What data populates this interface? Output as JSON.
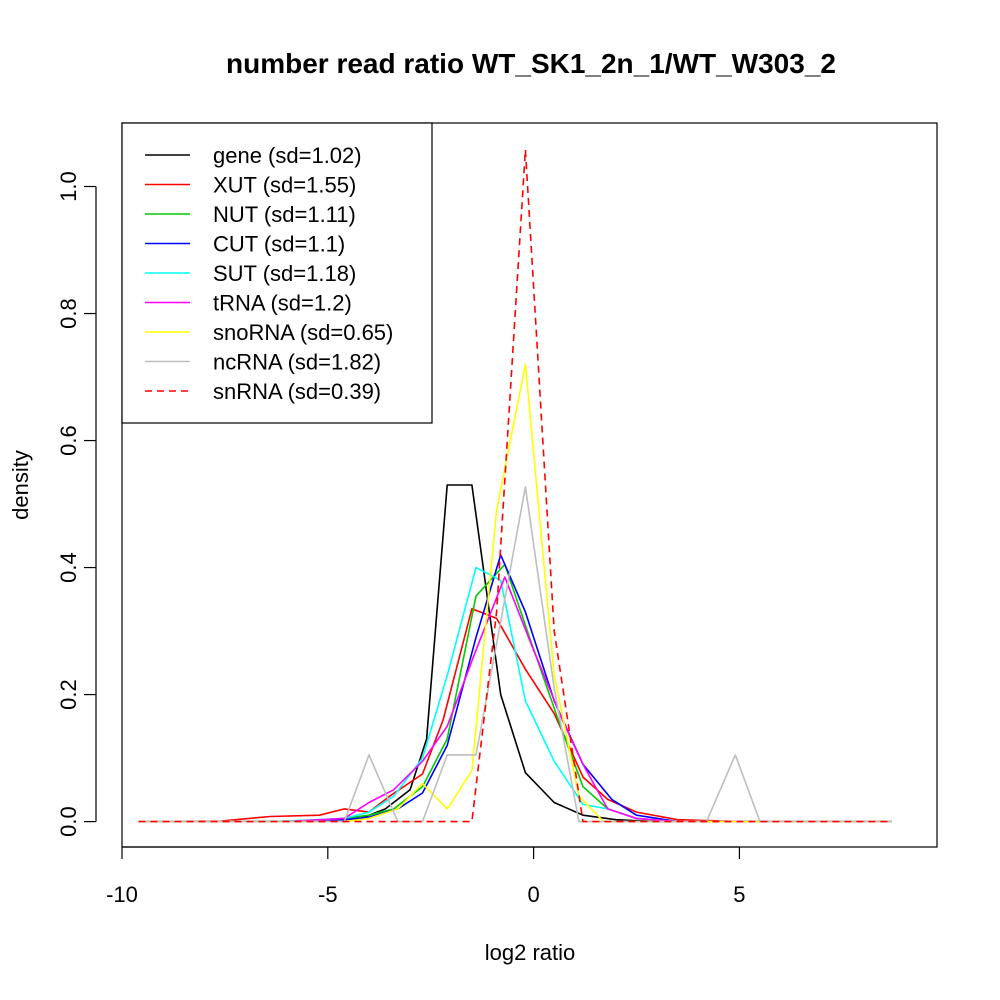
{
  "chart_data": {
    "type": "line",
    "title": "number read ratio WT_SK1_2n_1/WT_W303_2",
    "xlabel": "log2 ratio",
    "ylabel": "density",
    "xlim": [
      -10,
      9.8
    ],
    "ylim": [
      -0.04,
      1.1
    ],
    "x_ticks": [
      -10,
      -5,
      0,
      5
    ],
    "y_ticks": [
      0.0,
      0.2,
      0.4,
      0.6,
      0.8,
      1.0
    ],
    "x_tick_labels": [
      "-10",
      "-5",
      "0",
      "5"
    ],
    "y_tick_labels": [
      "0.0",
      "0.2",
      "0.4",
      "0.6",
      "0.8",
      "1.0"
    ],
    "grid": false,
    "legend_position": "top-left",
    "series": [
      {
        "name": "gene (sd=1.02)",
        "color": "#000000",
        "dash": "solid",
        "points": [
          [
            -9.6,
            0
          ],
          [
            -6.5,
            0
          ],
          [
            -5,
            0.002
          ],
          [
            -4.2,
            0.005
          ],
          [
            -3.6,
            0.02
          ],
          [
            -3.0,
            0.05
          ],
          [
            -2.6,
            0.13
          ],
          [
            -2.1,
            0.53
          ],
          [
            -1.5,
            0.53
          ],
          [
            -0.8,
            0.2
          ],
          [
            -0.2,
            0.077
          ],
          [
            0.5,
            0.03
          ],
          [
            1.2,
            0.01
          ],
          [
            2.0,
            0.003
          ],
          [
            3.0,
            0
          ],
          [
            8.7,
            0
          ]
        ]
      },
      {
        "name": "XUT (sd=1.55)",
        "color": "#ff0000",
        "dash": "solid",
        "points": [
          [
            -9.6,
            0
          ],
          [
            -7.6,
            0.001
          ],
          [
            -6.4,
            0.008
          ],
          [
            -5.2,
            0.01
          ],
          [
            -4.6,
            0.02
          ],
          [
            -4.0,
            0.015
          ],
          [
            -3.5,
            0.04
          ],
          [
            -2.7,
            0.075
          ],
          [
            -2.2,
            0.16
          ],
          [
            -1.5,
            0.335
          ],
          [
            -0.9,
            0.32
          ],
          [
            -0.2,
            0.24
          ],
          [
            0.5,
            0.17
          ],
          [
            1.2,
            0.07
          ],
          [
            1.8,
            0.035
          ],
          [
            2.5,
            0.015
          ],
          [
            3.5,
            0.003
          ],
          [
            5,
            0
          ],
          [
            8.7,
            0
          ]
        ]
      },
      {
        "name": "NUT (sd=1.11)",
        "color": "#00cc00",
        "dash": "solid",
        "points": [
          [
            -9.6,
            0
          ],
          [
            -6,
            0
          ],
          [
            -4.6,
            0.005
          ],
          [
            -4.0,
            0.01
          ],
          [
            -3.4,
            0.02
          ],
          [
            -2.7,
            0.055
          ],
          [
            -2.1,
            0.13
          ],
          [
            -1.4,
            0.355
          ],
          [
            -0.7,
            0.405
          ],
          [
            -0.1,
            0.29
          ],
          [
            0.6,
            0.16
          ],
          [
            1.2,
            0.055
          ],
          [
            1.8,
            0.02
          ],
          [
            2.5,
            0.005
          ],
          [
            3.5,
            0
          ],
          [
            8.7,
            0
          ]
        ]
      },
      {
        "name": "CUT (sd=1.1)",
        "color": "#0000ff",
        "dash": "solid",
        "points": [
          [
            -9.6,
            0
          ],
          [
            -6,
            0
          ],
          [
            -4.6,
            0.003
          ],
          [
            -4.0,
            0.007
          ],
          [
            -3.3,
            0.02
          ],
          [
            -2.7,
            0.045
          ],
          [
            -2.1,
            0.12
          ],
          [
            -1.4,
            0.29
          ],
          [
            -0.8,
            0.42
          ],
          [
            -0.2,
            0.33
          ],
          [
            0.5,
            0.19
          ],
          [
            1.2,
            0.09
          ],
          [
            1.9,
            0.035
          ],
          [
            2.5,
            0.01
          ],
          [
            3.5,
            0
          ],
          [
            8.7,
            0
          ]
        ]
      },
      {
        "name": "SUT (sd=1.18)",
        "color": "#00ffff",
        "dash": "solid",
        "points": [
          [
            -9.6,
            0
          ],
          [
            -6,
            0.001
          ],
          [
            -4.6,
            0.005
          ],
          [
            -4.0,
            0.015
          ],
          [
            -3.4,
            0.04
          ],
          [
            -2.7,
            0.1
          ],
          [
            -2.1,
            0.23
          ],
          [
            -1.4,
            0.4
          ],
          [
            -0.8,
            0.38
          ],
          [
            -0.2,
            0.19
          ],
          [
            0.5,
            0.095
          ],
          [
            1.2,
            0.027
          ],
          [
            1.8,
            0.02
          ],
          [
            2.5,
            0.005
          ],
          [
            3.5,
            0
          ],
          [
            8.7,
            0
          ]
        ]
      },
      {
        "name": "tRNA (sd=1.2)",
        "color": "#ff00ff",
        "dash": "solid",
        "points": [
          [
            -9.6,
            0
          ],
          [
            -6,
            0
          ],
          [
            -4.6,
            0.005
          ],
          [
            -4.0,
            0.03
          ],
          [
            -3.4,
            0.05
          ],
          [
            -2.7,
            0.095
          ],
          [
            -2.1,
            0.15
          ],
          [
            -1.4,
            0.27
          ],
          [
            -0.7,
            0.385
          ],
          [
            0.0,
            0.27
          ],
          [
            0.7,
            0.16
          ],
          [
            1.2,
            0.09
          ],
          [
            1.8,
            0.02
          ],
          [
            2.5,
            0.005
          ],
          [
            3.5,
            0
          ],
          [
            8.7,
            0
          ]
        ]
      },
      {
        "name": "snoRNA (sd=0.65)",
        "color": "#ffff00",
        "dash": "solid",
        "points": [
          [
            -9.6,
            0
          ],
          [
            -4.6,
            0
          ],
          [
            -4.0,
            0.005
          ],
          [
            -3.3,
            0.02
          ],
          [
            -2.7,
            0.06
          ],
          [
            -2.1,
            0.02
          ],
          [
            -1.5,
            0.08
          ],
          [
            -0.9,
            0.49
          ],
          [
            -0.2,
            0.72
          ],
          [
            0.5,
            0.23
          ],
          [
            1.1,
            0.04
          ],
          [
            1.7,
            0
          ],
          [
            8.7,
            0
          ]
        ]
      },
      {
        "name": "ncRNA (sd=1.82)",
        "color": "#bebebe",
        "dash": "solid",
        "points": [
          [
            -9.6,
            0
          ],
          [
            -4.6,
            0
          ],
          [
            -4.0,
            0.105
          ],
          [
            -3.3,
            0
          ],
          [
            -2.7,
            0
          ],
          [
            -2.1,
            0.105
          ],
          [
            -1.4,
            0.105
          ],
          [
            -0.8,
            0.315
          ],
          [
            -0.2,
            0.527
          ],
          [
            0.5,
            0.21
          ],
          [
            1.1,
            0
          ],
          [
            4.2,
            0
          ],
          [
            4.9,
            0.105
          ],
          [
            5.5,
            0
          ],
          [
            8.7,
            0
          ]
        ]
      },
      {
        "name": "snRNA (sd=0.39)",
        "color": "#ff0000",
        "dash": "dashed",
        "points": [
          [
            -9.6,
            0
          ],
          [
            -1.5,
            0
          ],
          [
            -0.9,
            0.33
          ],
          [
            -0.2,
            1.058
          ],
          [
            0.5,
            0.3
          ],
          [
            1.2,
            0
          ],
          [
            8.7,
            0
          ]
        ]
      }
    ]
  }
}
